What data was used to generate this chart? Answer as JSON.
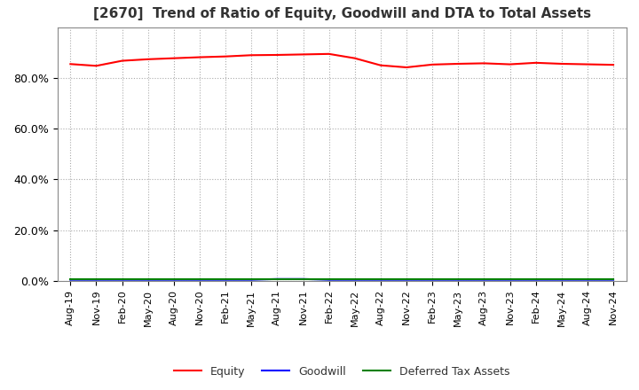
{
  "title": "[2670]  Trend of Ratio of Equity, Goodwill and DTA to Total Assets",
  "title_fontsize": 11,
  "ylim": [
    0,
    1.0
  ],
  "yticks": [
    0.0,
    0.2,
    0.4,
    0.6,
    0.8
  ],
  "background_color": "#ffffff",
  "plot_background": "#ffffff",
  "grid_color": "#aaaaaa",
  "legend_entries": [
    "Equity",
    "Goodwill",
    "Deferred Tax Assets"
  ],
  "legend_colors": [
    "#ff0000",
    "#0000ff",
    "#008000"
  ],
  "dates": [
    "Aug-19",
    "Nov-19",
    "Feb-20",
    "May-20",
    "Aug-20",
    "Nov-20",
    "Feb-21",
    "May-21",
    "Aug-21",
    "Nov-21",
    "Feb-22",
    "May-22",
    "Aug-22",
    "Nov-22",
    "Feb-23",
    "May-23",
    "Aug-23",
    "Nov-23",
    "Feb-24",
    "May-24",
    "Aug-24",
    "Nov-24"
  ],
  "equity": [
    0.855,
    0.848,
    0.868,
    0.874,
    0.878,
    0.882,
    0.885,
    0.89,
    0.891,
    0.893,
    0.895,
    0.878,
    0.85,
    0.842,
    0.853,
    0.856,
    0.858,
    0.854,
    0.86,
    0.856,
    0.854,
    0.852
  ],
  "goodwill": [
    0.004,
    0.004,
    0.004,
    0.004,
    0.004,
    0.004,
    0.004,
    0.004,
    0.007,
    0.007,
    0.004,
    0.004,
    0.004,
    0.004,
    0.004,
    0.004,
    0.004,
    0.004,
    0.004,
    0.004,
    0.004,
    0.004
  ],
  "dta": [
    0.008,
    0.008,
    0.008,
    0.008,
    0.008,
    0.008,
    0.008,
    0.008,
    0.008,
    0.008,
    0.008,
    0.008,
    0.008,
    0.008,
    0.008,
    0.008,
    0.008,
    0.008,
    0.008,
    0.008,
    0.008,
    0.008
  ]
}
